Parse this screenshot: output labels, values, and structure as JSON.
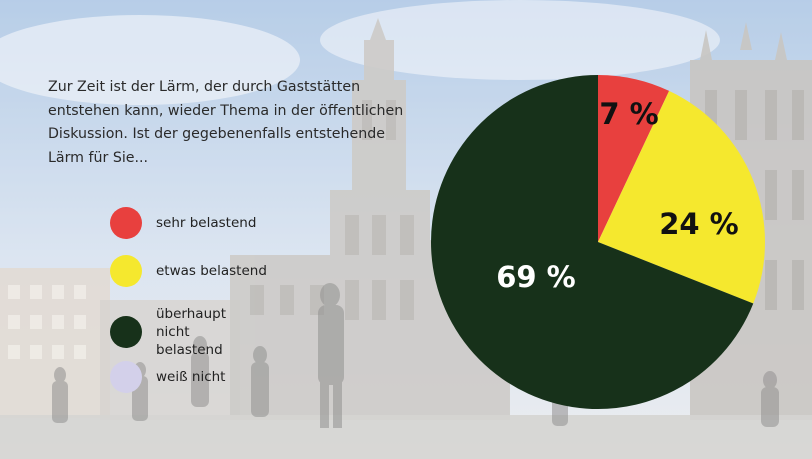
{
  "question": "Zur Zeit ist der Lärm, der durch Gaststätten entstehen kann, wieder Thema in der öffentlichen Diskussion. Ist der gegebenenfalls entstehende Lärm für Sie...",
  "legend": [
    {
      "label": "sehr belastend",
      "color": "#e8403e"
    },
    {
      "label": "etwas belastend",
      "color": "#f5e82e"
    },
    {
      "label": "überhaupt\nnicht belastend",
      "color": "#17311a"
    },
    {
      "label": "weiß nicht",
      "color": "#d3d0ea"
    }
  ],
  "chart_data": {
    "type": "pie",
    "title": "",
    "slices": [
      {
        "label": "sehr belastend",
        "value": 7,
        "display": "7 %",
        "color": "#e8403e",
        "label_color": "#111111"
      },
      {
        "label": "etwas belastend",
        "value": 24,
        "display": "24 %",
        "color": "#f5e82e",
        "label_color": "#111111"
      },
      {
        "label": "überhaupt nicht belastend",
        "value": 69,
        "display": "69 %",
        "color": "#17311a",
        "label_color": "#ffffff"
      }
    ],
    "start_angle": "12 o'clock",
    "direction": "clockwise",
    "legend_position": "left"
  },
  "background": {
    "description_icon": "city-square-photo",
    "sky_color": "#b9cfe6",
    "building_color": "#c4c2c0"
  }
}
